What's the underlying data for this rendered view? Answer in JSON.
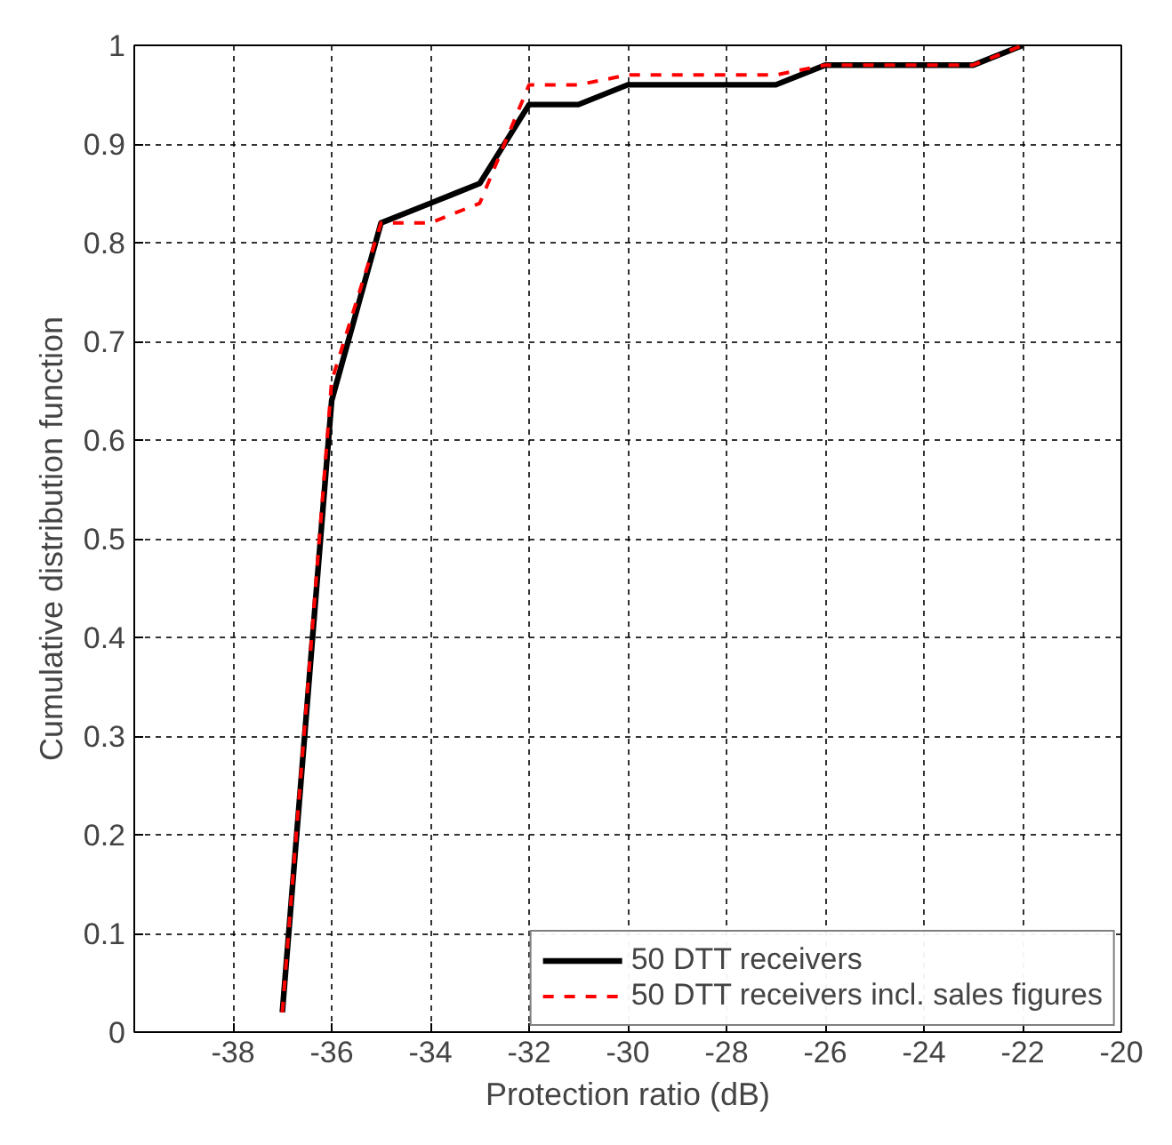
{
  "chart_data": {
    "type": "line",
    "xlabel": "Protection ratio (dB)",
    "ylabel": "Cumulative distribution function",
    "xlim": [
      -40,
      -20
    ],
    "xticks": [
      {
        "value": -40,
        "label": null
      },
      -38,
      -36,
      -34,
      -32,
      -30,
      -28,
      -26,
      -24,
      -22,
      -20
    ],
    "ylim": [
      0,
      1
    ],
    "yticks": [
      0,
      0.1,
      0.2,
      0.3,
      0.4,
      0.5,
      0.6,
      0.7,
      0.8,
      0.9,
      1
    ],
    "grid": true,
    "legend": "bottom right",
    "marker": "none",
    "series": [
      {
        "name": "50 DTT receivers",
        "color": "#000000",
        "line_style": "solid",
        "x": [
          -37,
          -36,
          -35,
          -34,
          -33,
          -32,
          -31,
          -30,
          -29,
          -28,
          -27,
          -26,
          -25,
          -24,
          -23,
          -22
        ],
        "values": [
          0.02,
          0.64,
          0.82,
          0.84,
          0.86,
          0.94,
          0.94,
          0.96,
          0.96,
          0.96,
          0.96,
          0.98,
          0.98,
          0.98,
          0.98,
          1
        ]
      },
      {
        "name": "50 DTT receivers incl. sales figures",
        "color": "#ff0000",
        "line_style": "dashed",
        "x": [
          -37,
          -36,
          -35,
          -34,
          -33,
          -32,
          -31,
          -30,
          -29,
          -28,
          -27,
          -26,
          -25,
          -24,
          -23,
          -22
        ],
        "values": [
          0.02,
          0.66,
          0.82,
          0.82,
          0.84,
          0.96,
          0.96,
          0.97,
          0.97,
          0.97,
          0.97,
          0.98,
          0.98,
          0.98,
          0.98,
          1
        ]
      }
    ]
  }
}
